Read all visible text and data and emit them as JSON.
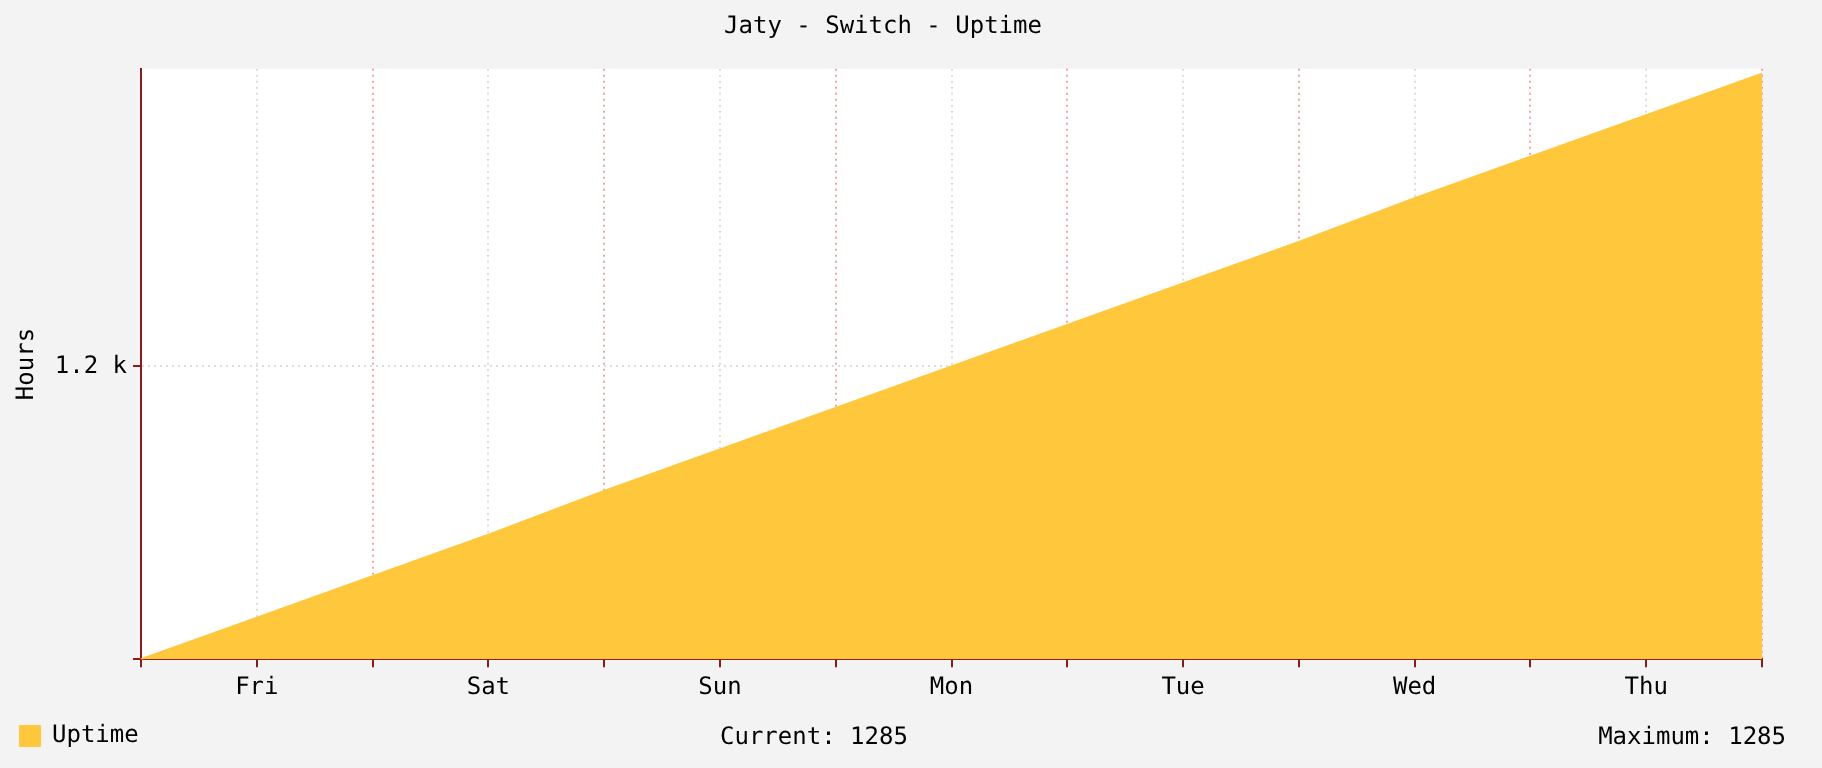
{
  "chart_data": {
    "type": "area",
    "title": "Jaty - Switch - Uptime",
    "ylabel": "Hours",
    "categories": [
      null,
      "Fri",
      null,
      "Sat",
      null,
      "Sun",
      null,
      "Mon",
      null,
      "Tue",
      null,
      "Wed",
      null,
      "Thu",
      null
    ],
    "series": [
      {
        "name": "Uptime",
        "color": "#ffc73b",
        "values": [
          0,
          170,
          340,
          510,
          690,
          860,
          1030,
          1200,
          1370,
          1540,
          1710,
          1890,
          2060,
          2230,
          2400
        ]
      }
    ],
    "ylim": [
      0,
      2420
    ],
    "yticks": [
      {
        "value": 0,
        "label": null
      },
      {
        "value": 1200,
        "label": "1.2 k"
      }
    ],
    "grid": true,
    "legend": "bottom left",
    "annotations": [
      "Current: 1285",
      "Maximum: 1285"
    ]
  }
}
